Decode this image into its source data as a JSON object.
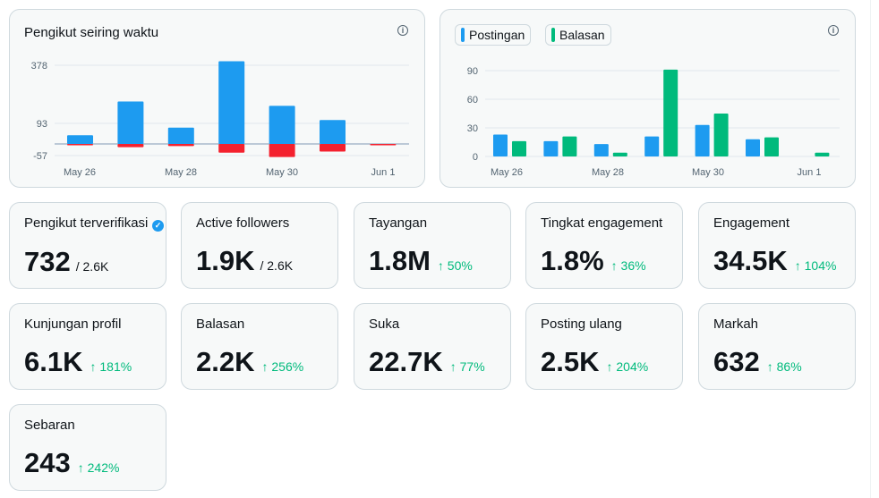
{
  "followers_chart": {
    "title": "Pengikut seiring waktu",
    "info_icon": "info-icon",
    "colors": {
      "positive": "#1d9bf0",
      "negative": "#f4212e",
      "baseline": "#8b98a5"
    },
    "chart_data": {
      "type": "bar",
      "y_ticks": [
        "378",
        "93",
        "-57"
      ],
      "x_ticks": [
        "May 26",
        "May 28",
        "May 30",
        "Jun 1"
      ],
      "ylim": [
        -57,
        378
      ],
      "series": [
        {
          "values": [
            40,
            195,
            75,
            380,
            175,
            110,
            0
          ]
        },
        {
          "values": [
            -3,
            -15,
            -10,
            -40,
            -60,
            -35,
            -4
          ]
        }
      ]
    }
  },
  "posts_chart": {
    "legend": [
      {
        "label": "Postingan",
        "color": "#1d9bf0"
      },
      {
        "label": "Balasan",
        "color": "#00ba7c"
      }
    ],
    "info_icon": "info-icon",
    "chart_data": {
      "type": "bar",
      "y_ticks": [
        "90",
        "60",
        "30",
        "0"
      ],
      "x_ticks": [
        "May 26",
        "May 28",
        "May 30",
        "Jun 1"
      ],
      "ylim": [
        0,
        90
      ],
      "series": [
        {
          "name": "Postingan",
          "values": [
            23,
            16,
            13,
            21,
            33,
            18,
            0
          ]
        },
        {
          "name": "Balasan",
          "values": [
            16,
            21,
            4,
            91,
            45,
            20,
            4
          ]
        }
      ]
    }
  },
  "stats": [
    {
      "title": "Pengikut terverifikasi",
      "value": "732",
      "sub": "/ 2.6K",
      "change": "",
      "verified": true
    },
    {
      "title": "Active followers",
      "value": "1.9K",
      "sub": "/ 2.6K",
      "change": ""
    },
    {
      "title": "Tayangan",
      "value": "1.8M",
      "sub": "",
      "change": "↑ 50%"
    },
    {
      "title": "Tingkat engagement",
      "value": "1.8%",
      "sub": "",
      "change": "↑ 36%"
    },
    {
      "title": "Engagement",
      "value": "34.5K",
      "sub": "",
      "change": "↑ 104%"
    },
    {
      "title": "Kunjungan profil",
      "value": "6.1K",
      "sub": "",
      "change": "↑ 181%"
    },
    {
      "title": "Balasan",
      "value": "2.2K",
      "sub": "",
      "change": "↑ 256%"
    },
    {
      "title": "Suka",
      "value": "22.7K",
      "sub": "",
      "change": "↑ 77%"
    },
    {
      "title": "Posting ulang",
      "value": "2.5K",
      "sub": "",
      "change": "↑ 204%"
    },
    {
      "title": "Markah",
      "value": "632",
      "sub": "",
      "change": "↑ 86%"
    },
    {
      "title": "Sebaran",
      "value": "243",
      "sub": "",
      "change": "↑ 242%"
    }
  ]
}
